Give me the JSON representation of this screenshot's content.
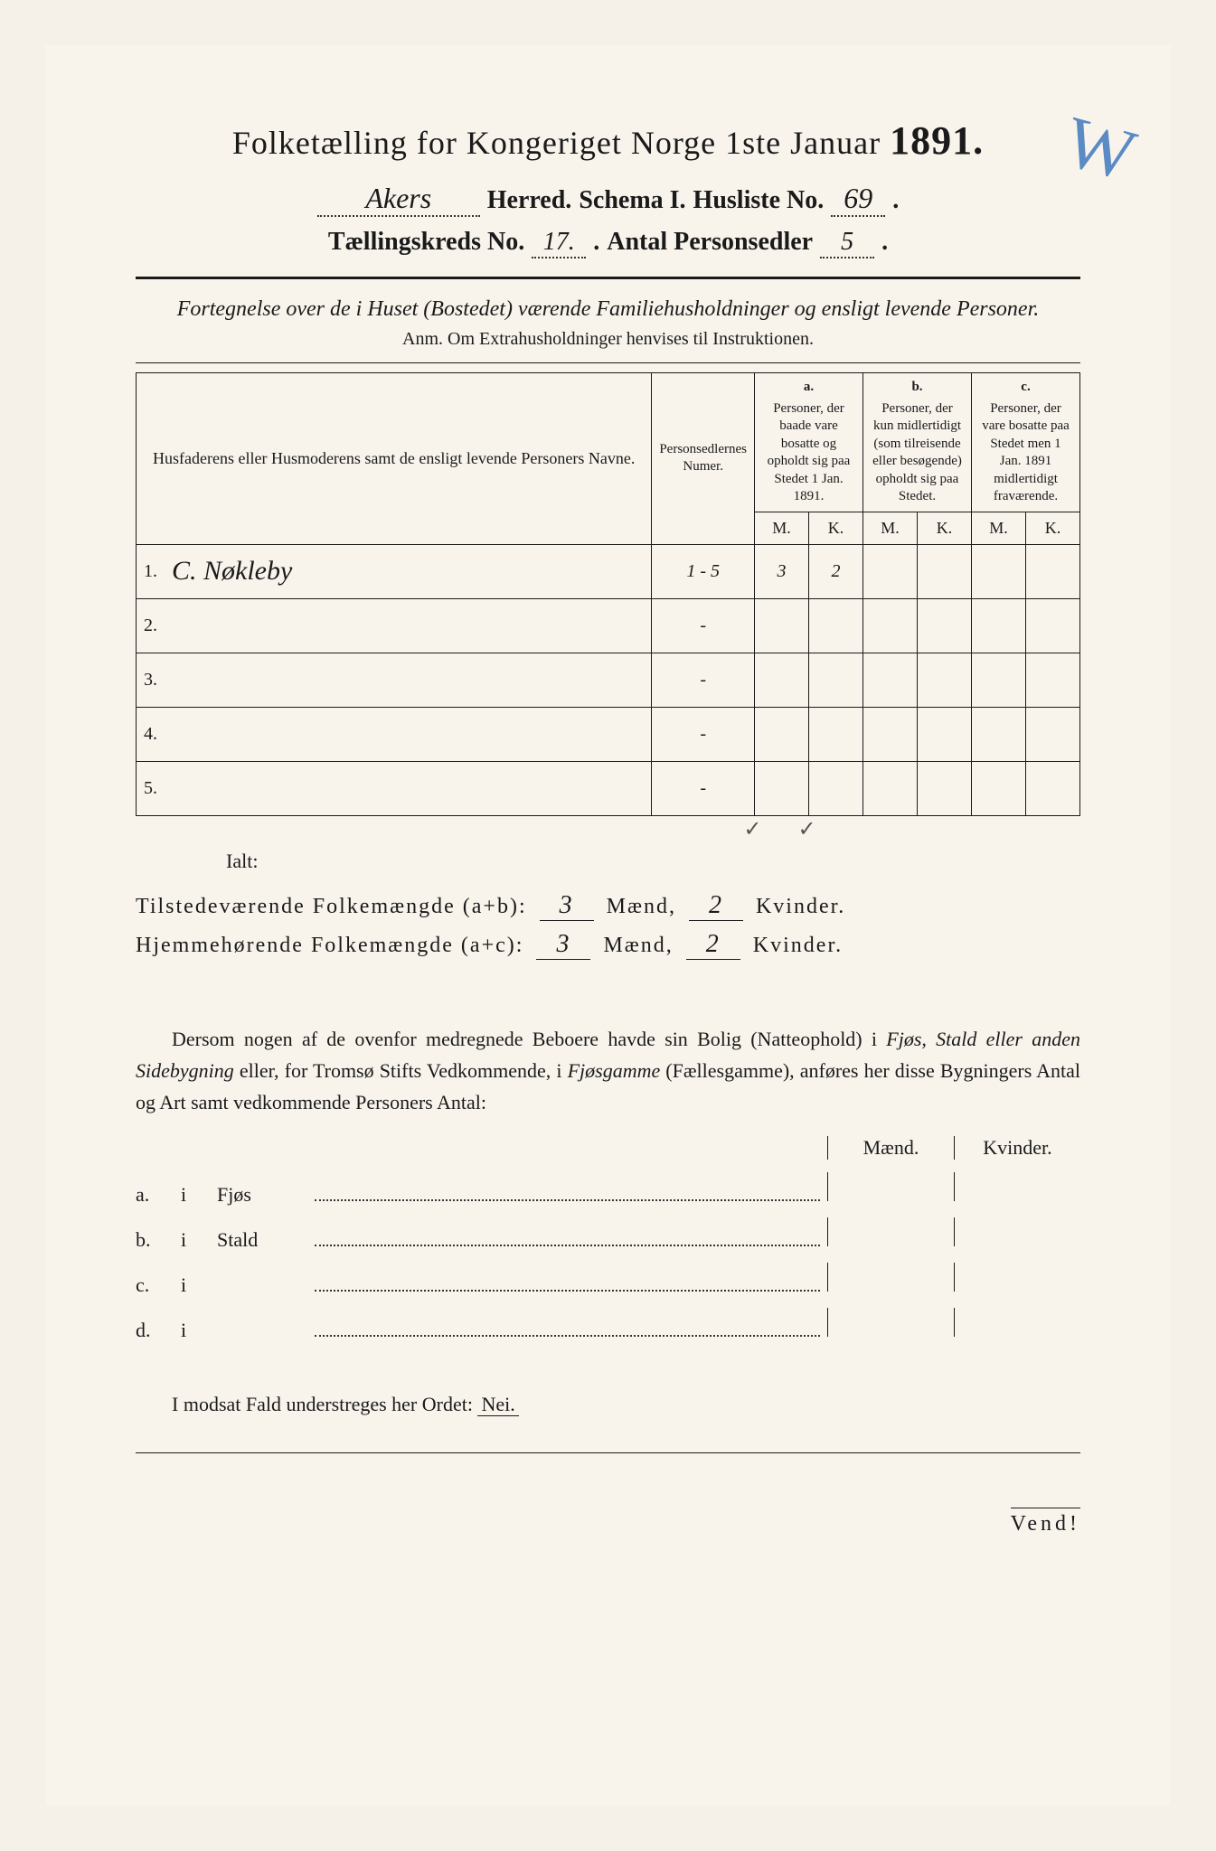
{
  "title": {
    "main": "Folketælling for Kongeriget Norge 1ste Januar",
    "year": "1891."
  },
  "header": {
    "herred_value": "Akers",
    "herred_label": "Herred.",
    "schema_label": "Schema I.",
    "husliste_label": "Husliste No.",
    "husliste_value": "69",
    "kreds_label": "Tællingskreds No.",
    "kreds_value": "17.",
    "antal_label": "Antal Personsedler",
    "antal_value": "5"
  },
  "subtitle": "Fortegnelse over de i Huset (Bostedet) værende Familiehusholdninger og ensligt levende Personer.",
  "anm": "Anm. Om Extrahusholdninger henvises til Instruktionen.",
  "table": {
    "col_name": "Husfaderens eller Husmoderens samt de ensligt levende Personers Navne.",
    "col_numer": "Personsedlernes Numer.",
    "col_a_letter": "a.",
    "col_a": "Personer, der baade vare bosatte og opholdt sig paa Stedet 1 Jan. 1891.",
    "col_b_letter": "b.",
    "col_b": "Personer, der kun midlertidigt (som tilreisende eller besøgende) opholdt sig paa Stedet.",
    "col_c_letter": "c.",
    "col_c": "Personer, der vare bosatte paa Stedet men 1 Jan. 1891 midlertidigt fraværende.",
    "mk_m": "M.",
    "mk_k": "K.",
    "rows": [
      {
        "num": "1.",
        "name": "C. Nøkleby",
        "numer": "1 - 5",
        "a_m": "3",
        "a_k": "2",
        "b_m": "",
        "b_k": "",
        "c_m": "",
        "c_k": ""
      },
      {
        "num": "2.",
        "name": "",
        "numer": "-",
        "a_m": "",
        "a_k": "",
        "b_m": "",
        "b_k": "",
        "c_m": "",
        "c_k": ""
      },
      {
        "num": "3.",
        "name": "",
        "numer": "-",
        "a_m": "",
        "a_k": "",
        "b_m": "",
        "b_k": "",
        "c_m": "",
        "c_k": ""
      },
      {
        "num": "4.",
        "name": "",
        "numer": "-",
        "a_m": "",
        "a_k": "",
        "b_m": "",
        "b_k": "",
        "c_m": "",
        "c_k": ""
      },
      {
        "num": "5.",
        "name": "",
        "numer": "-",
        "a_m": "",
        "a_k": "",
        "b_m": "",
        "b_k": "",
        "c_m": "",
        "c_k": ""
      }
    ]
  },
  "ialt": "Ialt:",
  "checkmarks": "✓✓",
  "totals": {
    "tilstede_label": "Tilstedeværende Folkemængde (a+b):",
    "hjemme_label": "Hjemmehørende Folkemængde (a+c):",
    "maend": "Mænd,",
    "kvinder": "Kvinder.",
    "tilstede_m": "3",
    "tilstede_k": "2",
    "hjemme_m": "3",
    "hjemme_k": "2"
  },
  "paragraph": {
    "p1": "Dersom nogen af de ovenfor medregnede Beboere havde sin Bolig (Natteophold) i ",
    "p2": "Fjøs, Stald eller anden Sidebygning",
    "p3": " eller, for Tromsø Stifts Vedkommende, i ",
    "p4": "Fjøsgamme",
    "p5": " (Fællesgamme), anføres her disse Bygningers Antal og Art samt vedkommende Personers Antal:"
  },
  "buildings": {
    "maend": "Mænd.",
    "kvinder": "Kvinder.",
    "rows": [
      {
        "lbl": "a.",
        "i": "i",
        "type": "Fjøs"
      },
      {
        "lbl": "b.",
        "i": "i",
        "type": "Stald"
      },
      {
        "lbl": "c.",
        "i": "i",
        "type": ""
      },
      {
        "lbl": "d.",
        "i": "i",
        "type": ""
      }
    ]
  },
  "modsat": {
    "text": "I modsat Fald understreges her Ordet: ",
    "nei": "Nei."
  },
  "vend": "Vend!",
  "blue_mark": "W"
}
